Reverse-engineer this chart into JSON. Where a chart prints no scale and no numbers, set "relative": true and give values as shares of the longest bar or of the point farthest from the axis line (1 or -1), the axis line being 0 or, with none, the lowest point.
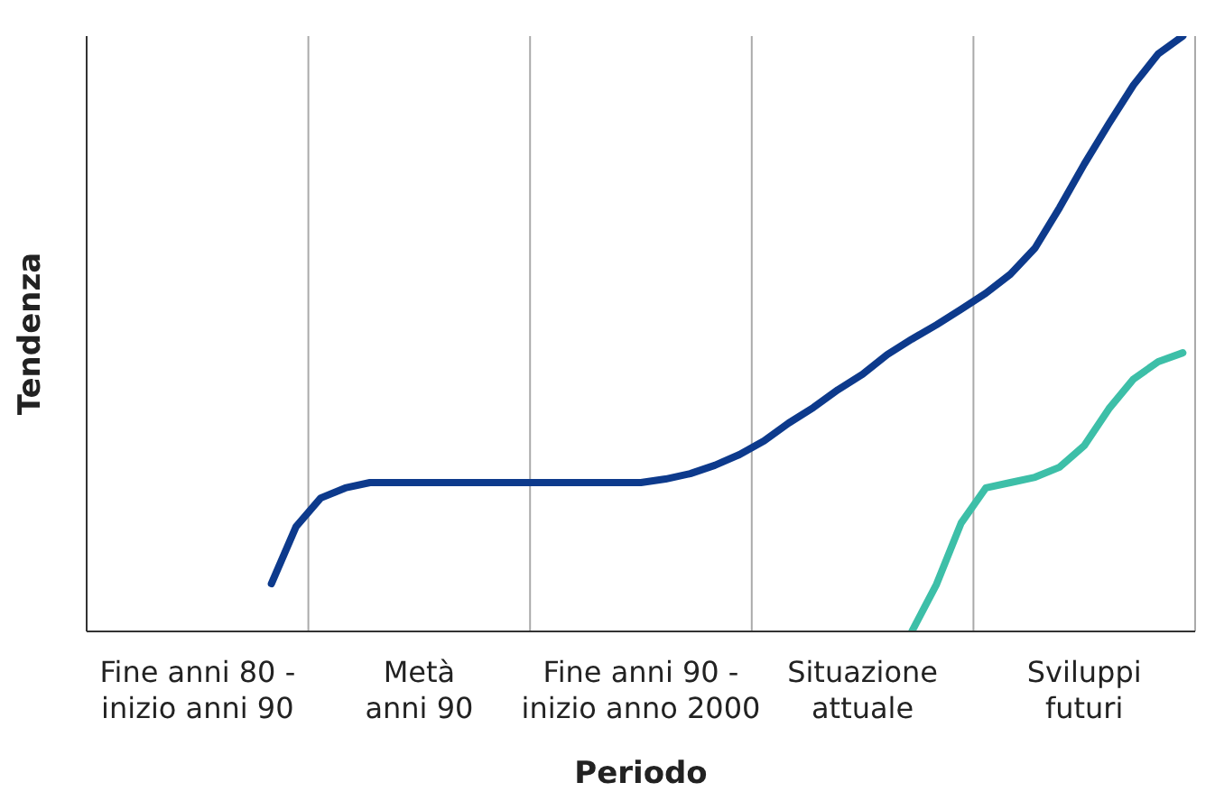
{
  "chart_data": {
    "type": "line",
    "relative": true,
    "xlabel": "Periodo",
    "ylabel": "Tendenza",
    "grid": true,
    "marker": "none",
    "line_style": "solid",
    "categories": [
      null,
      null,
      null,
      null,
      "Fine anni 80 -\ninizio anni 90",
      null,
      null,
      null,
      null,
      null,
      null,
      null,
      null,
      "Metà\nanni 90",
      null,
      null,
      null,
      null,
      null,
      null,
      null,
      null,
      "Fine anni 90 -\ninizio anno 2000",
      null,
      null,
      null,
      null,
      null,
      null,
      null,
      null,
      "Situazione\nattuale",
      null,
      null,
      null,
      null,
      null,
      null,
      null,
      null,
      "Sviluppi\nfuturi",
      null,
      null,
      null,
      null
    ],
    "series": [
      {
        "color": "#0d3a8c",
        "values": [
          null,
          null,
          null,
          null,
          null,
          null,
          null,
          0.08,
          0.176,
          0.224,
          0.241,
          0.25,
          0.25,
          0.25,
          0.25,
          0.25,
          0.25,
          0.25,
          0.25,
          0.25,
          0.25,
          0.25,
          0.25,
          0.256,
          0.265,
          0.279,
          0.297,
          0.32,
          0.35,
          0.376,
          0.406,
          0.432,
          0.465,
          0.491,
          0.515,
          0.541,
          0.568,
          0.6,
          0.644,
          0.712,
          0.785,
          0.853,
          0.918,
          0.97,
          1
        ]
      },
      {
        "color": "#3dbfa8",
        "values": [
          null,
          null,
          null,
          null,
          null,
          null,
          null,
          null,
          null,
          null,
          null,
          null,
          null,
          null,
          null,
          null,
          null,
          null,
          null,
          null,
          null,
          null,
          null,
          null,
          null,
          null,
          null,
          null,
          null,
          null,
          null,
          null,
          null,
          0,
          0.079,
          0.182,
          0.241,
          0.25,
          0.259,
          0.276,
          0.312,
          0.374,
          0.424,
          0.453,
          0.468
        ]
      }
    ]
  }
}
